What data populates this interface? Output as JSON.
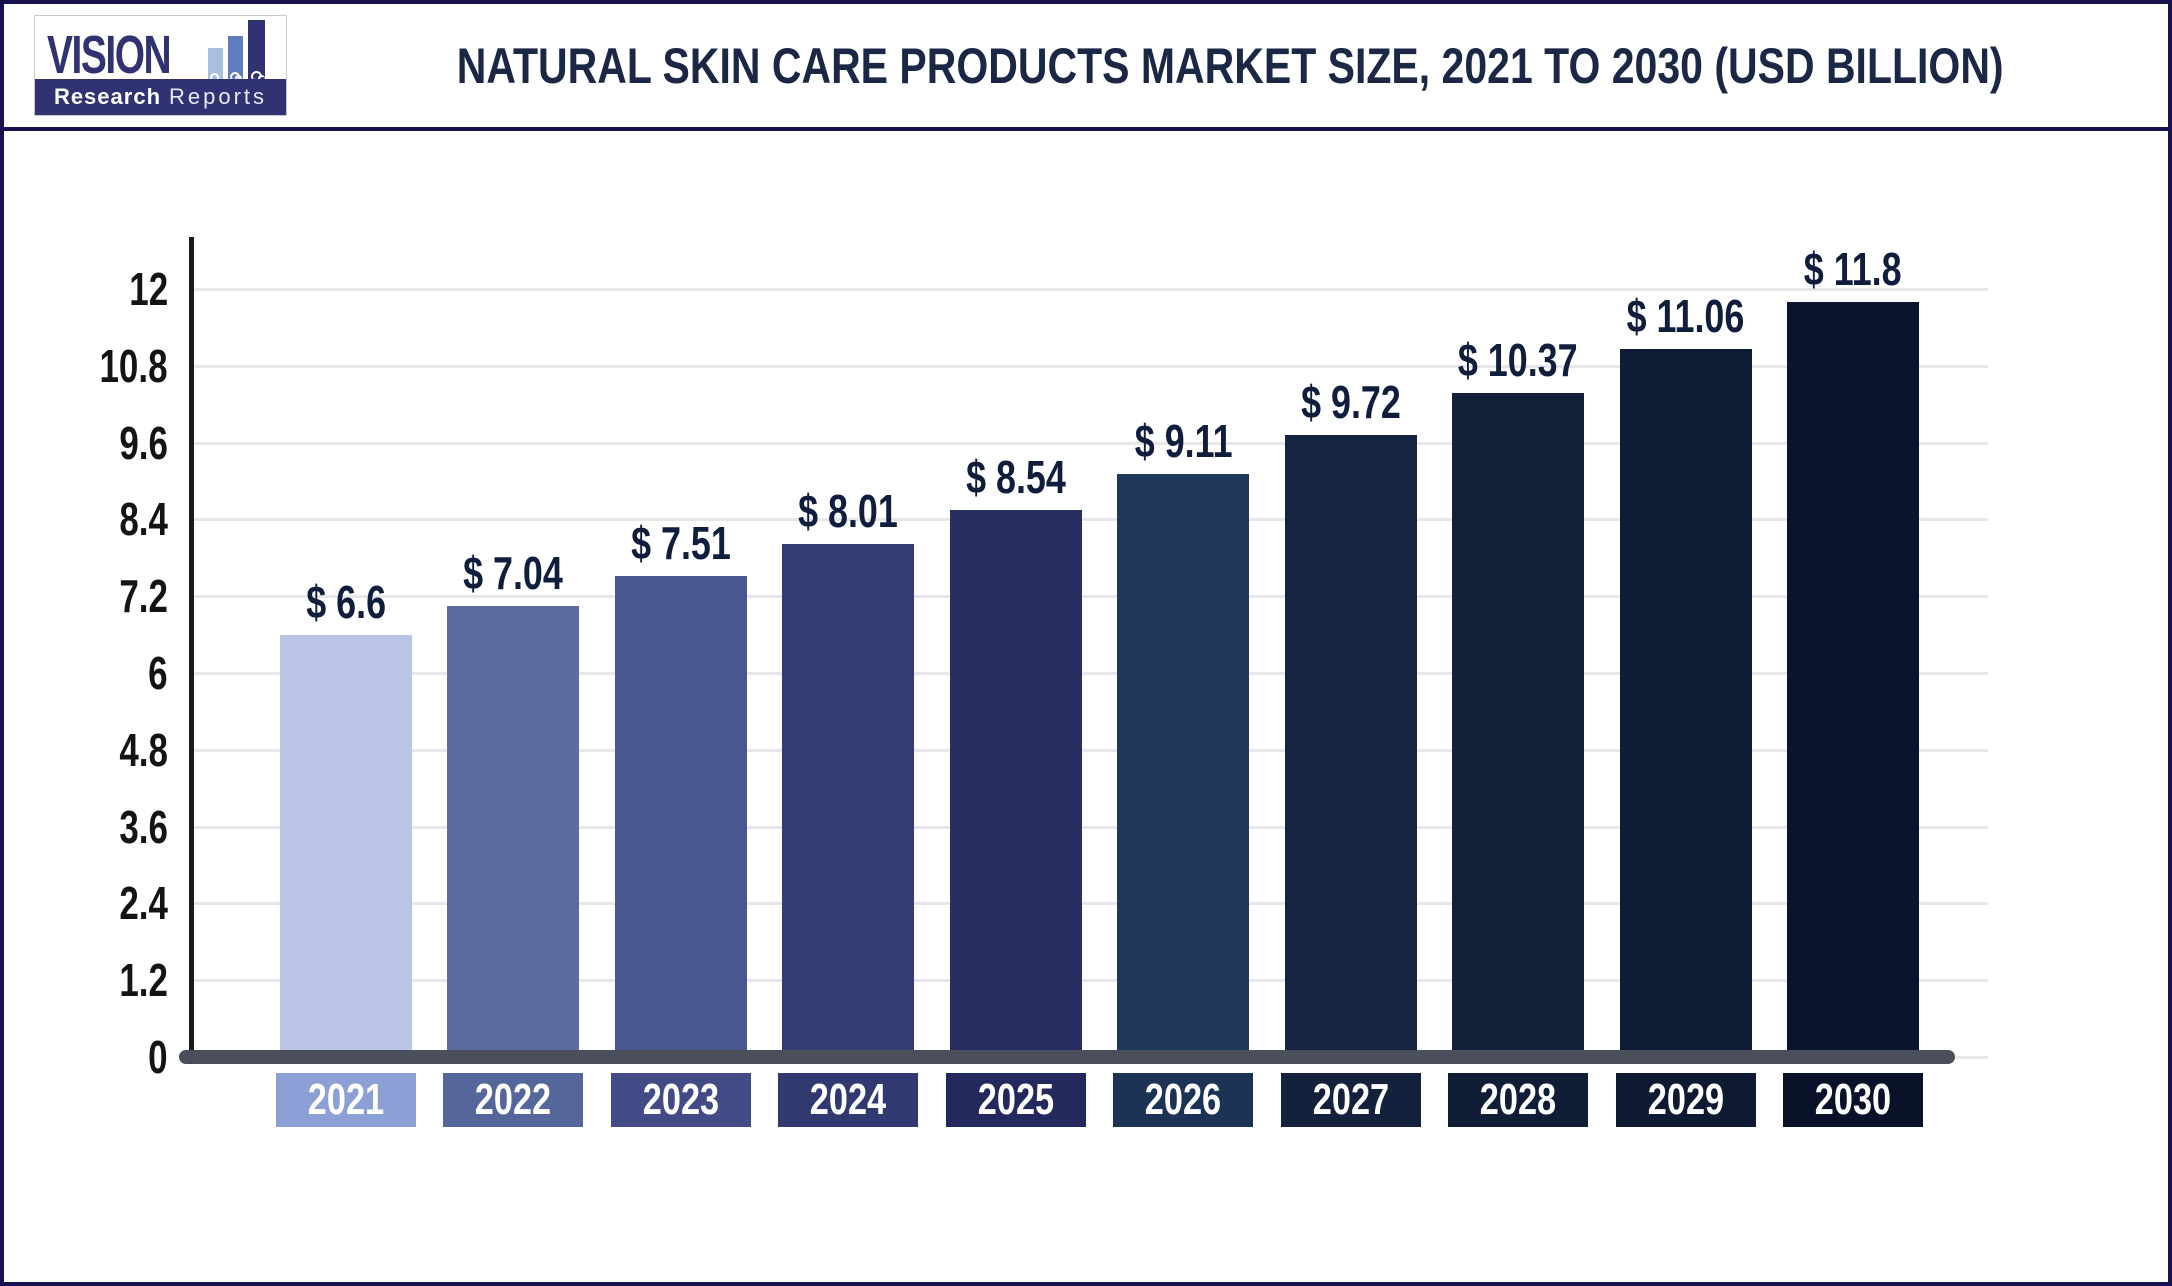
{
  "header": {
    "title": "NATURAL SKIN CARE PRODUCTS MARKET SIZE, 2021 TO 2030 (USD BILLION)",
    "logo": {
      "brand_top": "VISION",
      "brand_bottom_bold": "Research",
      "brand_bottom_light": "Reports"
    }
  },
  "chart_data": {
    "type": "bar",
    "title": "NATURAL SKIN CARE PRODUCTS MARKET SIZE, 2021 TO 2030 (USD BILLION)",
    "unit": "USD Billion",
    "categories": [
      "2021",
      "2022",
      "2023",
      "2024",
      "2025",
      "2026",
      "2027",
      "2028",
      "2029",
      "2030"
    ],
    "values": [
      6.6,
      7.04,
      7.51,
      8.01,
      8.54,
      9.11,
      9.72,
      10.37,
      11.06,
      11.8
    ],
    "value_labels": [
      "$ 6.6",
      "$ 7.04",
      "$ 7.51",
      "$ 8.01",
      "$ 8.54",
      "$ 9.11",
      "$ 9.72",
      "$ 10.37",
      "$ 11.06",
      "$ 11.8"
    ],
    "y_ticks": [
      0,
      1.2,
      2.4,
      3.6,
      4.8,
      6,
      7.2,
      8.4,
      9.6,
      10.8,
      12
    ],
    "y_tick_labels": [
      "0",
      "1.2",
      "2.4",
      "3.6",
      "4.8",
      "6",
      "7.2",
      "8.4",
      "9.6",
      "10.8",
      "12"
    ],
    "ylim": [
      0,
      12.8
    ],
    "grid": true,
    "legend": false,
    "bar_colors": [
      "#bac4e5",
      "#5a6b9d",
      "#4a568f",
      "#343e74",
      "#272e62",
      "#1f3759",
      "#152440",
      "#12203a",
      "#0f1c35",
      "#0a142c"
    ],
    "category_box_colors": [
      "#8ca0d6",
      "#54669a",
      "#424b85",
      "#303a70",
      "#23295c",
      "#1c3356",
      "#13213c",
      "#101d37",
      "#0e1a32",
      "#091229"
    ]
  },
  "colors": {
    "page_border": "#181150",
    "title_text": "#1a2745",
    "tick_label": "#141414",
    "value_label": "#0f1e3c",
    "category_text": "#ffffff",
    "gridline": "#e7e7ea",
    "axis_line": "#1a1a1a",
    "baseline": "#4a4f5b",
    "logo_navy": "#303272",
    "logo_bar_light": "#a9bfe0",
    "logo_bar_mid": "#5f7dbe"
  }
}
